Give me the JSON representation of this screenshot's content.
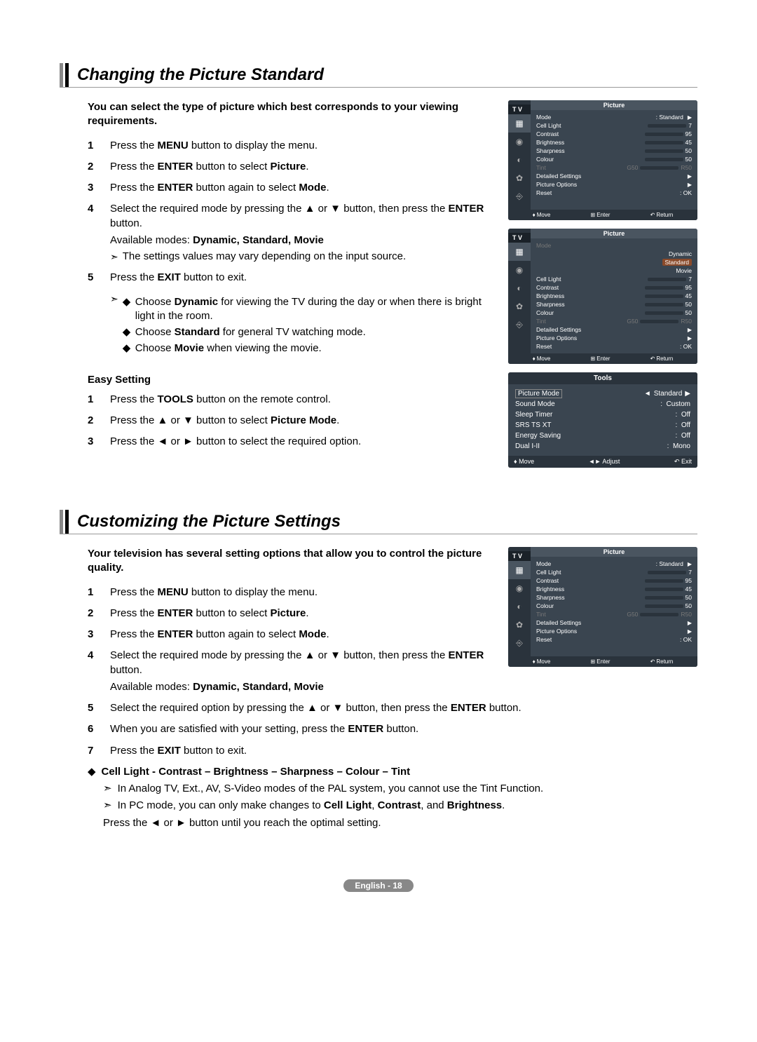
{
  "section1": {
    "title": "Changing the Picture Standard",
    "intro": "You can select the type of picture which best corresponds to your viewing requirements.",
    "steps": [
      {
        "pre": "Press the ",
        "b1": "MENU",
        "post1": " button to display the menu."
      },
      {
        "pre": "Press the ",
        "b1": "ENTER",
        "post1": " button to select ",
        "b2": "Picture",
        "post2": "."
      },
      {
        "pre": "Press the ",
        "b1": "ENTER",
        "post1": " button again to select ",
        "b2": "Mode",
        "post2": "."
      },
      {
        "pre": "Select the required mode by pressing the ▲ or ▼ button, then press the ",
        "b1": "ENTER",
        "post1": " button."
      },
      {
        "pre": "Press the ",
        "b1": "EXIT",
        "post1": " button to exit."
      }
    ],
    "step4_modes_pre": "Available modes: ",
    "step4_modes": "Dynamic, Standard, Movie",
    "step4_note": "The settings values may vary depending on the input source.",
    "tips": [
      {
        "pre": "Choose ",
        "b": "Dynamic",
        "post": " for viewing the TV during the day or when there is bright light in the room."
      },
      {
        "pre": "Choose ",
        "b": "Standard",
        "post": " for general TV watching mode."
      },
      {
        "pre": "Choose ",
        "b": "Movie",
        "post": " when viewing the movie."
      }
    ],
    "easy_title": "Easy Setting",
    "easy_steps": [
      {
        "pre": "Press the ",
        "b1": "TOOLS",
        "post1": " button on the remote control."
      },
      {
        "pre": "Press the ▲ or ▼ button to select ",
        "b1": "Picture Mode",
        "post1": "."
      },
      {
        "pre": "Press the ◄ or ► button to select the required option."
      }
    ]
  },
  "section2": {
    "title": "Customizing the Picture Settings",
    "intro": "Your television has several setting options that allow you to control the picture quality.",
    "steps": [
      {
        "pre": "Press the ",
        "b1": "MENU",
        "post1": " button to display the menu."
      },
      {
        "pre": "Press the ",
        "b1": "ENTER",
        "post1": " button to select ",
        "b2": "Picture",
        "post2": "."
      },
      {
        "pre": "Press the ",
        "b1": "ENTER",
        "post1": " button again to select ",
        "b2": "Mode",
        "post2": "."
      },
      {
        "pre": "Select the required mode by pressing the ▲ or ▼ button, then press the ",
        "b1": "ENTER",
        "post1": " button."
      },
      {
        "pre": "Select the required option by pressing the ▲ or ▼ button, then press the ",
        "b1": "ENTER",
        "post1": " button."
      },
      {
        "pre": "When you are satisfied with your setting, press the ",
        "b1": "ENTER",
        "post1": " button."
      },
      {
        "pre": "Press the ",
        "b1": "EXIT",
        "post1": " button to exit."
      }
    ],
    "step4_modes_pre": "Available modes: ",
    "step4_modes": "Dynamic, Standard, Movie",
    "detail_title": "Cell Light - Contrast – Brightness – Sharpness – Colour – Tint",
    "detail_notes": [
      "In Analog TV, Ext., AV, S-Video modes of the PAL system, you cannot use the Tint Function.",
      {
        "pre": "In PC mode, you can only make changes to ",
        "b1": "Cell Light",
        "m1": ", ",
        "b2": "Contrast",
        "m2": ", and ",
        "b3": "Brightness",
        "post": "."
      }
    ],
    "detail_final": "Press the ◄ or ► button until you reach the optimal setting."
  },
  "osd": {
    "tv": "T V",
    "title": "Picture",
    "mode_label": "Mode",
    "mode_val": "Standard",
    "rows": [
      {
        "label": "Cell Light",
        "val": "7",
        "pct": 70
      },
      {
        "label": "Contrast",
        "val": "95",
        "pct": 95
      },
      {
        "label": "Brightness",
        "val": "45",
        "pct": 45
      },
      {
        "label": "Sharpness",
        "val": "50",
        "pct": 50
      },
      {
        "label": "Colour",
        "val": "50",
        "pct": 50
      }
    ],
    "tint_label": "Tint",
    "tint_left": "G50",
    "tint_right": "R50",
    "detailed": "Detailed Settings",
    "options": "Picture Options",
    "reset": "Reset",
    "reset_val": ": OK",
    "nav": {
      "move": "Move",
      "enter": "Enter",
      "return": "Return"
    },
    "dropdown": [
      "Dynamic",
      "Standard",
      "Movie"
    ]
  },
  "tools": {
    "title": "Tools",
    "rows": [
      {
        "label": "Picture Mode",
        "val": "Standard",
        "hl": true,
        "arrows": true
      },
      {
        "label": "Sound Mode",
        "val": "Custom"
      },
      {
        "label": "Sleep Timer",
        "val": "Off"
      },
      {
        "label": "SRS TS XT",
        "val": "Off"
      },
      {
        "label": "Energy Saving",
        "val": "Off"
      },
      {
        "label": "Dual I-II",
        "val": "Mono"
      }
    ],
    "nav": {
      "move": "Move",
      "adjust": "Adjust",
      "exit": "Exit"
    }
  },
  "footer": "English - 18"
}
